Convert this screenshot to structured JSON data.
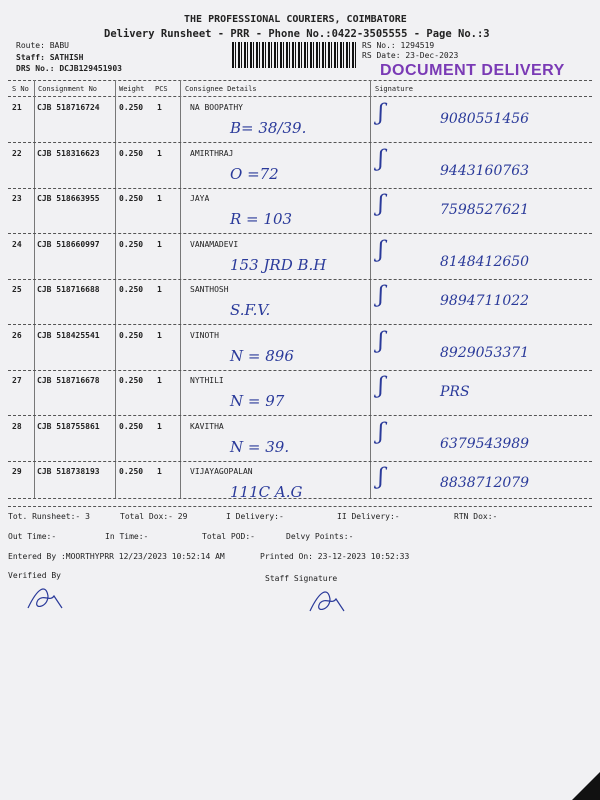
{
  "header": {
    "company": "THE PROFESSIONAL COURIERS, COIMBATORE",
    "subtitle": "Delivery Runsheet - PRR - Phone No.:0422-3505555 - Page No.:3",
    "route": "Route: BABU",
    "staff": "Staff: SATHISH",
    "drs": "DRS No.: DCJB129451903",
    "rs_no": "RS No.: 1294519",
    "rs_date": "RS Date: 23-Dec-2023",
    "stamp": "DOCUMENT DELIVERY"
  },
  "columns": [
    "S No",
    "Consignment No",
    "Weight",
    "PCS",
    "Consignee Details",
    "Signature"
  ],
  "rows": [
    {
      "sno": "21",
      "cn": "CJB 518716724",
      "wt": "0.250",
      "pcs": "1",
      "name": "NA BOOPATHY",
      "note": "B= 38/39.",
      "phone": "9080551456"
    },
    {
      "sno": "22",
      "cn": "CJB 518316623",
      "wt": "0.250",
      "pcs": "1",
      "name": "AMIRTHRAJ",
      "note": "O =72",
      "phone": "9443160763"
    },
    {
      "sno": "23",
      "cn": "CJB 518663955",
      "wt": "0.250",
      "pcs": "1",
      "name": "JAYA",
      "note": "R = 103",
      "phone": "7598527621"
    },
    {
      "sno": "24",
      "cn": "CJB 518660997",
      "wt": "0.250",
      "pcs": "1",
      "name": "VANAMADEVI",
      "note": "153 JRD B.H",
      "phone": "8148412650"
    },
    {
      "sno": "25",
      "cn": "CJB 518716688",
      "wt": "0.250",
      "pcs": "1",
      "name": "SANTHOSH",
      "note": "S.F.V.",
      "phone": "9894711022"
    },
    {
      "sno": "26",
      "cn": "CJB 518425541",
      "wt": "0.250",
      "pcs": "1",
      "name": "VINOTH",
      "note": "N = 896",
      "phone": "8929053371"
    },
    {
      "sno": "27",
      "cn": "CJB 518716678",
      "wt": "0.250",
      "pcs": "1",
      "name": "NYTHILI",
      "note": "N = 97",
      "phone": "PRS"
    },
    {
      "sno": "28",
      "cn": "CJB 518755861",
      "wt": "0.250",
      "pcs": "1",
      "name": "KAVITHA",
      "note": "N = 39.",
      "phone": "6379543989"
    },
    {
      "sno": "29",
      "cn": "CJB 518738193",
      "wt": "0.250",
      "pcs": "1",
      "name": "VIJAYAGOPALAN",
      "note": "111C A.G",
      "phone": "8838712079"
    }
  ],
  "footer": {
    "tot_runsheet": "Tot. Runsheet:- 3",
    "total_dox": "Total Dox:-   29",
    "i_delivery": "I Delivery:-",
    "ii_delivery": "II Delivery:-",
    "rtn_dox": "RTN Dox:-",
    "out_time": "Out Time:-",
    "in_time": "In Time:-",
    "total_pod": "Total POD:-",
    "delvy_points": "Delvy Points:-",
    "entered_by": "Entered By :MOORTHYPRR 12/23/2023 10:52:14 AM",
    "printed_on": "Printed On: 23-12-2023 10:52:33",
    "verified_by": "Verified By",
    "staff_signature": "Staff Signature"
  }
}
